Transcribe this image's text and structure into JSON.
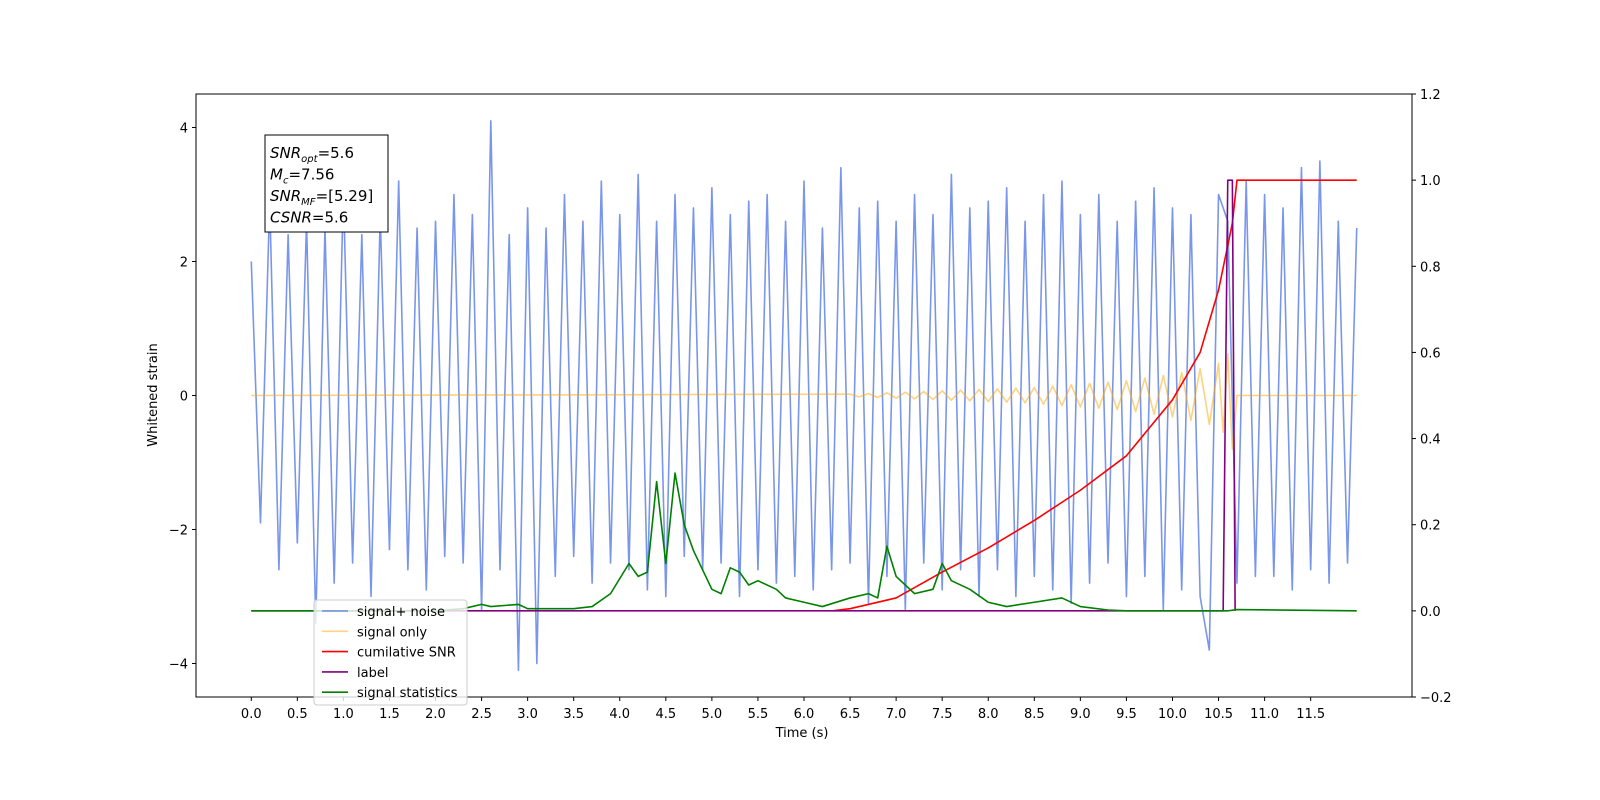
{
  "chart_data": {
    "type": "line",
    "xlabel": "Time (s)",
    "ylabel": "Whitened strain",
    "xlim": [
      -0.6,
      12.6
    ],
    "ylim": [
      -4.5,
      4.5
    ],
    "y2lim": [
      -0.2,
      1.2
    ],
    "xticks": [
      {
        "value": 0,
        "label": "0.0"
      },
      0.5,
      {
        "value": 1,
        "label": "1.0"
      },
      1.5,
      {
        "value": 2,
        "label": "2.0"
      },
      2.5,
      {
        "value": 3,
        "label": "3.0"
      },
      3.5,
      {
        "value": 4,
        "label": "4.0"
      },
      4.5,
      {
        "value": 5,
        "label": "5.0"
      },
      5.5,
      {
        "value": 6,
        "label": "6.0"
      },
      6.5,
      {
        "value": 7,
        "label": "7.0"
      },
      7.5,
      {
        "value": 8,
        "label": "8.0"
      },
      8.5,
      {
        "value": 9,
        "label": "9.0"
      },
      9.5,
      {
        "value": 10,
        "label": "10.0"
      },
      10.5,
      {
        "value": 11,
        "label": "11.0"
      },
      11.5
    ],
    "yticks": [
      {
        "value": -4,
        "label": "−4"
      },
      {
        "value": -2,
        "label": "−2"
      },
      0,
      2,
      4
    ],
    "y2ticks": [
      {
        "value": -0.2,
        "label": "−0.2"
      },
      {
        "value": 0,
        "label": "0.0"
      },
      0.2,
      0.4,
      0.6,
      0.8,
      {
        "value": 1,
        "label": "1.0"
      },
      1.2
    ],
    "grid": false,
    "legend": "lower left",
    "annotation": [
      {
        "symbol": "SNR",
        "sub": "opt",
        "text": "=5.6"
      },
      {
        "symbol": "M",
        "sub": "c",
        "text": "=7.56"
      },
      {
        "symbol": "SNR",
        "sub": "MF",
        "text": "=[5.29]"
      },
      {
        "symbol": "CSNR",
        "sub": "",
        "text": "=5.6"
      }
    ],
    "series": [
      {
        "name": "signal+ noise",
        "color": "#4169e1",
        "alpha": 0.7,
        "axis": "y",
        "x": [
          0,
          0.1,
          0.2,
          0.3,
          0.4,
          0.5,
          0.6,
          0.7,
          0.8,
          0.9,
          1,
          1.1,
          1.2,
          1.3,
          1.4,
          1.5,
          1.6,
          1.7,
          1.8,
          1.9,
          2,
          2.1,
          2.2,
          2.3,
          2.4,
          2.5,
          2.6,
          2.7,
          2.8,
          2.9,
          3,
          3.1,
          3.2,
          3.3,
          3.4,
          3.5,
          3.6,
          3.7,
          3.8,
          3.9,
          4,
          4.1,
          4.2,
          4.3,
          4.4,
          4.5,
          4.6,
          4.7,
          4.8,
          4.9,
          5,
          5.1,
          5.2,
          5.3,
          5.4,
          5.5,
          5.6,
          5.7,
          5.8,
          5.9,
          6,
          6.1,
          6.2,
          6.3,
          6.4,
          6.5,
          6.6,
          6.7,
          6.8,
          6.9,
          7,
          7.1,
          7.2,
          7.3,
          7.4,
          7.5,
          7.6,
          7.7,
          7.8,
          7.9,
          8,
          8.1,
          8.2,
          8.3,
          8.4,
          8.5,
          8.6,
          8.7,
          8.8,
          8.9,
          9,
          9.1,
          9.2,
          9.3,
          9.4,
          9.5,
          9.6,
          9.7,
          9.8,
          9.9,
          10,
          10.1,
          10.2,
          10.3,
          10.4,
          10.5,
          10.6,
          10.7,
          10.8,
          10.9,
          11,
          11.1,
          11.2,
          11.3,
          11.4,
          11.5,
          11.6,
          11.7,
          11.8,
          11.9,
          12
        ],
        "values": [
          2.0,
          -1.9,
          2.9,
          -2.6,
          2.4,
          -2.2,
          2.6,
          -3.4,
          2.5,
          -2.8,
          3.1,
          -2.5,
          2.4,
          -3.0,
          2.7,
          -2.3,
          3.2,
          -2.6,
          2.5,
          -2.9,
          2.6,
          -2.4,
          3.0,
          -2.5,
          2.7,
          -3.2,
          4.1,
          -2.6,
          2.4,
          -4.1,
          2.8,
          -4.0,
          2.5,
          -2.7,
          3.0,
          -2.4,
          2.6,
          -2.8,
          3.2,
          -2.5,
          2.7,
          -2.6,
          3.3,
          -2.9,
          2.6,
          -3.0,
          3.0,
          -2.4,
          2.8,
          -2.6,
          3.1,
          -2.5,
          2.7,
          -3.0,
          2.9,
          -2.6,
          3.0,
          -2.8,
          2.6,
          -2.7,
          3.2,
          -2.9,
          2.5,
          -2.6,
          3.4,
          -2.5,
          2.8,
          -3.1,
          2.9,
          -2.7,
          2.6,
          -3.2,
          3.0,
          -2.5,
          2.7,
          -2.9,
          3.3,
          -2.6,
          2.8,
          -3.0,
          2.9,
          -2.6,
          3.1,
          -3.0,
          2.6,
          -2.7,
          3.0,
          -2.9,
          3.2,
          -3.1,
          2.7,
          -2.8,
          3.0,
          -2.5,
          2.6,
          -3.0,
          2.9,
          -2.7,
          3.1,
          -3.2,
          2.8,
          -2.9,
          2.7,
          -3.0,
          -3.8,
          3.0,
          2.6,
          -2.8,
          3.2,
          -2.7,
          3.0,
          -2.7,
          2.8,
          -2.9,
          3.4,
          -2.6,
          3.5,
          -2.8,
          2.6,
          -2.5,
          2.5
        ]
      },
      {
        "name": "signal only",
        "color": "#ffa500",
        "alpha": 0.5,
        "axis": "y",
        "x": [
          0,
          6.5,
          6.6,
          6.7,
          6.8,
          6.9,
          7.0,
          7.1,
          7.2,
          7.3,
          7.4,
          7.5,
          7.6,
          7.7,
          7.8,
          7.9,
          8.0,
          8.1,
          8.2,
          8.3,
          8.4,
          8.5,
          8.6,
          8.7,
          8.8,
          8.9,
          9.0,
          9.1,
          9.2,
          9.3,
          9.4,
          9.5,
          9.6,
          9.7,
          9.8,
          9.9,
          10.0,
          10.1,
          10.2,
          10.3,
          10.4,
          10.5,
          10.55,
          10.6,
          10.65,
          10.7,
          12
        ],
        "values": [
          0,
          0.02,
          -0.02,
          0.03,
          -0.03,
          0.04,
          -0.04,
          0.05,
          -0.05,
          0.06,
          -0.06,
          0.07,
          -0.07,
          0.08,
          -0.08,
          0.09,
          -0.09,
          0.1,
          -0.1,
          0.11,
          -0.11,
          0.12,
          -0.13,
          0.14,
          -0.15,
          0.16,
          -0.17,
          0.18,
          -0.19,
          0.2,
          -0.21,
          0.22,
          -0.24,
          0.26,
          -0.28,
          0.3,
          -0.32,
          0.34,
          -0.37,
          0.4,
          -0.43,
          0.48,
          -0.55,
          0.62,
          -0.8,
          0,
          0
        ]
      },
      {
        "name": "cumilative SNR",
        "color": "#ff0000",
        "alpha": 1,
        "axis": "y2",
        "x": [
          6.3,
          6.5,
          7.0,
          7.5,
          8.0,
          8.5,
          9.0,
          9.5,
          10.0,
          10.3,
          10.5,
          10.65,
          10.7,
          12
        ],
        "values": [
          0,
          0.005,
          0.03,
          0.09,
          0.146,
          0.21,
          0.28,
          0.36,
          0.49,
          0.6,
          0.745,
          0.9,
          1.0,
          1.0
        ]
      },
      {
        "name": "label",
        "color": "#800080",
        "alpha": 1,
        "axis": "y2",
        "x": [
          0,
          10.55,
          10.6,
          10.65,
          10.68
        ],
        "values": [
          0,
          0,
          1,
          1,
          0
        ]
      },
      {
        "name": "signal statistics",
        "color": "#008000",
        "alpha": 1,
        "axis": "y2",
        "x": [
          0,
          2.0,
          2.3,
          2.5,
          2.6,
          2.9,
          3.0,
          3.5,
          3.7,
          3.9,
          4.1,
          4.2,
          4.3,
          4.4,
          4.5,
          4.6,
          4.7,
          4.8,
          5.0,
          5.1,
          5.2,
          5.3,
          5.4,
          5.5,
          5.7,
          5.8,
          6.0,
          6.2,
          6.5,
          6.7,
          6.8,
          6.9,
          7.0,
          7.2,
          7.4,
          7.5,
          7.6,
          7.8,
          8.0,
          8.2,
          8.5,
          8.8,
          9.0,
          9.3,
          9.5,
          10.6,
          10.7,
          12
        ],
        "values": [
          0,
          0,
          0.005,
          0.015,
          0.01,
          0.015,
          0.005,
          0.005,
          0.01,
          0.04,
          0.11,
          0.08,
          0.09,
          0.3,
          0.11,
          0.32,
          0.2,
          0.14,
          0.05,
          0.04,
          0.1,
          0.09,
          0.06,
          0.07,
          0.05,
          0.03,
          0.02,
          0.01,
          0.03,
          0.04,
          0.03,
          0.15,
          0.08,
          0.04,
          0.05,
          0.11,
          0.07,
          0.05,
          0.02,
          0.01,
          0.02,
          0.03,
          0.01,
          0.002,
          0,
          0,
          0.003,
          0
        ]
      }
    ]
  }
}
